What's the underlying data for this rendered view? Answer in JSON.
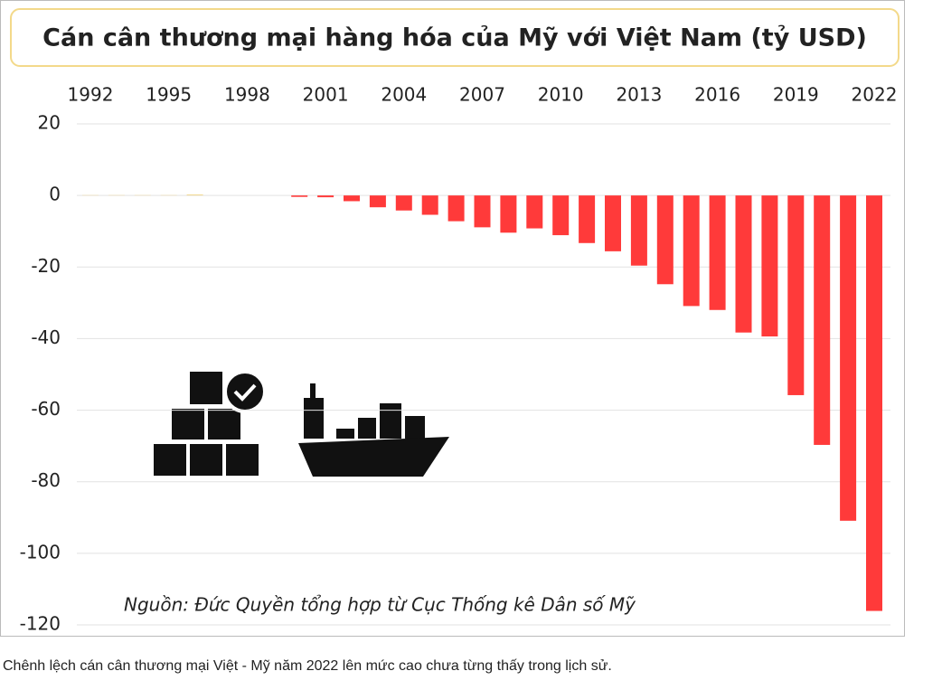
{
  "chart_data": {
    "type": "bar",
    "title": "Cán cân thương mại hàng hóa của Mỹ với Việt Nam (tỷ USD)",
    "categories": [
      "1992",
      null,
      null,
      "1995",
      null,
      null,
      "1998",
      null,
      null,
      "2001",
      null,
      null,
      "2004",
      null,
      null,
      "2007",
      null,
      null,
      "2010",
      null,
      null,
      "2013",
      null,
      null,
      "2016",
      null,
      null,
      "2019",
      null,
      null,
      "2022"
    ],
    "values": [
      0.1,
      0.1,
      0.1,
      0.1,
      0.3,
      0,
      0,
      0,
      -0.4,
      -0.5,
      -1.6,
      -3.3,
      -4.2,
      -5.4,
      -7.2,
      -8.9,
      -10.4,
      -9.2,
      -11.1,
      -13.3,
      -15.6,
      -19.6,
      -24.8,
      -30.9,
      -32.0,
      -38.3,
      -39.4,
      -55.8,
      -69.7,
      -90.9,
      -116.1
    ],
    "positive_color": "#f3dc9a",
    "negative_color": "#ff3a3a",
    "ylim": [
      -120,
      20
    ],
    "yticks": [
      20,
      0,
      -20,
      -40,
      -60,
      -80,
      -100,
      -120
    ],
    "grid": true,
    "source": "Nguồn: Đức Quyền tổng hợp từ Cục Thống kê Dân số Mỹ",
    "caption": "Chênh lệch cán cân thương mại Việt - Mỹ năm 2022 lên mức cao chưa từng thấy trong lịch sử."
  }
}
